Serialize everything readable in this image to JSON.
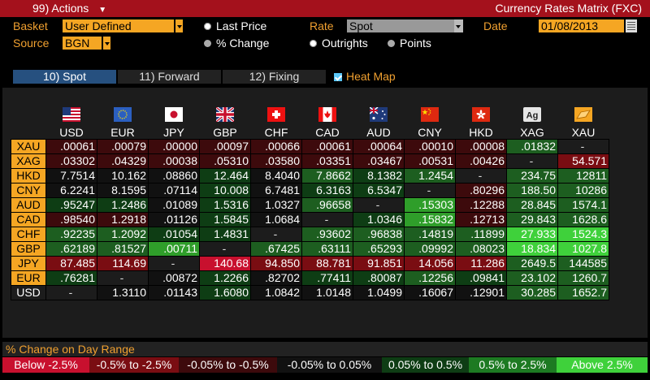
{
  "window": {
    "actions_label": "99) Actions",
    "actions_chevron": "▼",
    "title": "Currency Rates Matrix (FXC)"
  },
  "controls": {
    "basket_label": "Basket",
    "basket_value": "User Defined",
    "source_label": "Source",
    "source_value": "BGN",
    "last_price_label": "Last Price",
    "pct_change_label": "% Change",
    "rate_label": "Rate",
    "rate_value": "Spot",
    "outrights_label": "Outrights",
    "points_label": "Points",
    "date_label": "Date",
    "date_value": "01/08/2013"
  },
  "tabs": [
    {
      "label": "10) Spot",
      "active": true
    },
    {
      "label": "11) Forward",
      "active": false
    },
    {
      "label": "12) Fixing",
      "active": false
    }
  ],
  "heatmap_label": "Heat Map",
  "matrix": {
    "columns": [
      "USD",
      "EUR",
      "JPY",
      "GBP",
      "CHF",
      "CAD",
      "AUD",
      "CNY",
      "HKD",
      "XAG",
      "XAU"
    ],
    "rows": [
      {
        "ccy": "XAU",
        "values": [
          ".00061",
          ".00079",
          ".00000",
          ".00097",
          ".00066",
          ".00061",
          ".00064",
          ".00010",
          ".00008",
          ".01832",
          "-"
        ]
      },
      {
        "ccy": "XAG",
        "values": [
          ".03302",
          ".04329",
          ".00038",
          ".05310",
          ".03580",
          ".03351",
          ".03467",
          ".00531",
          ".00426",
          "-",
          "54.571"
        ]
      },
      {
        "ccy": "HKD",
        "values": [
          "7.7514",
          "10.162",
          ".08860",
          "12.464",
          "8.4040",
          "7.8662",
          "8.1382",
          "1.2454",
          "-",
          "234.75",
          "12811"
        ]
      },
      {
        "ccy": "CNY",
        "values": [
          "6.2241",
          "8.1595",
          ".07114",
          "10.008",
          "6.7481",
          "6.3163",
          "6.5347",
          "-",
          ".80296",
          "188.50",
          "10286"
        ]
      },
      {
        "ccy": "AUD",
        "values": [
          ".95247",
          "1.2486",
          ".01089",
          "1.5316",
          "1.0327",
          ".96658",
          "-",
          ".15303",
          ".12288",
          "28.845",
          "1574.1"
        ]
      },
      {
        "ccy": "CAD",
        "values": [
          ".98540",
          "1.2918",
          ".01126",
          "1.5845",
          "1.0684",
          "-",
          "1.0346",
          ".15832",
          ".12713",
          "29.843",
          "1628.6"
        ]
      },
      {
        "ccy": "CHF",
        "values": [
          ".92235",
          "1.2092",
          ".01054",
          "1.4831",
          "-",
          ".93602",
          ".96838",
          ".14819",
          ".11899",
          "27.933",
          "1524.3"
        ]
      },
      {
        "ccy": "GBP",
        "values": [
          ".62189",
          ".81527",
          ".00711",
          "-",
          ".67425",
          ".63111",
          ".65293",
          ".09992",
          ".08023",
          "18.834",
          "1027.8"
        ]
      },
      {
        "ccy": "JPY",
        "values": [
          "87.485",
          "114.69",
          "-",
          "140.68",
          "94.850",
          "88.781",
          "91.851",
          "14.056",
          "11.286",
          "2649.5",
          "144585"
        ]
      },
      {
        "ccy": "EUR",
        "values": [
          ".76281",
          "-",
          ".00872",
          "1.2266",
          ".82702",
          ".77411",
          ".80087",
          ".12256",
          ".09841",
          "23.102",
          "1260.7"
        ]
      },
      {
        "ccy": "USD",
        "values": [
          "-",
          "1.3110",
          ".01143",
          "1.6080",
          "1.0842",
          "1.0148",
          "1.0499",
          ".16067",
          ".12901",
          "30.285",
          "1652.7"
        ]
      }
    ],
    "bands": [
      [
        "l2",
        "l2",
        "l2",
        "l2",
        "l2",
        "l2",
        "l2",
        "l2",
        "l2",
        "l5",
        "s"
      ],
      [
        "l2",
        "l2",
        "l2",
        "l2",
        "l2",
        "l2",
        "l2",
        "l2",
        "l2",
        "s",
        "l1"
      ],
      [
        "l3",
        "l3",
        "l3",
        "l4",
        "l3",
        "l5",
        "l4",
        "l5",
        "s",
        "l5",
        "l5"
      ],
      [
        "l3",
        "l3",
        "l3",
        "l4",
        "l3",
        "l4",
        "l4",
        "s",
        "l2",
        "l5",
        "l5"
      ],
      [
        "l4",
        "l4",
        "l3",
        "l4",
        "l3",
        "l5",
        "s",
        "l6",
        "l2",
        "l5",
        "l5"
      ],
      [
        "l2",
        "l2",
        "l3",
        "l4",
        "l3",
        "s",
        "l4",
        "l6",
        "l2",
        "l5",
        "l5"
      ],
      [
        "l5",
        "l5",
        "l4",
        "l4",
        "s",
        "l5",
        "l5",
        "l5",
        "l5",
        "l7",
        "l7"
      ],
      [
        "l5",
        "l5",
        "l6",
        "s",
        "l5",
        "l5",
        "l5",
        "l5",
        "l5",
        "l7",
        "l7"
      ],
      [
        "l1",
        "l1",
        "s",
        "l0",
        "l1",
        "l1",
        "l1",
        "l1",
        "l1",
        "l5",
        "l5"
      ],
      [
        "l4",
        "s",
        "l3",
        "l4",
        "l3",
        "l4",
        "l4",
        "l5",
        "l4",
        "l5",
        "l5"
      ],
      [
        "s",
        "l3",
        "l3",
        "l4",
        "l3",
        "l3",
        "l3",
        "l3",
        "l3",
        "l5",
        "l5"
      ]
    ]
  },
  "legend": {
    "title": "% Change on Day Range",
    "items": [
      {
        "label": "Below -2.5%",
        "color": "#c8102e"
      },
      {
        "label": "-0.5% to -2.5%",
        "color": "#7a0d12"
      },
      {
        "label": "-0.05% to -0.5%",
        "color": "#3d0a0c"
      },
      {
        "label": "-0.05% to 0.05%",
        "color": "#111111"
      },
      {
        "label": "0.05% to 0.5%",
        "color": "#0e3d14"
      },
      {
        "label": "0.5% to 2.5%",
        "color": "#1d7a22"
      },
      {
        "label": "Above 2.5%",
        "color": "#3fd13b"
      }
    ]
  },
  "band_colors": {
    "l0": "#c8102e",
    "l1": "#7a0d12",
    "l2": "#3d0a0c",
    "l3": "#111111",
    "l4": "#0e3d14",
    "l5": "#1d5e20",
    "l6": "#2f9e2a",
    "l7": "#3fd13b",
    "s": "#1c1c1c"
  }
}
